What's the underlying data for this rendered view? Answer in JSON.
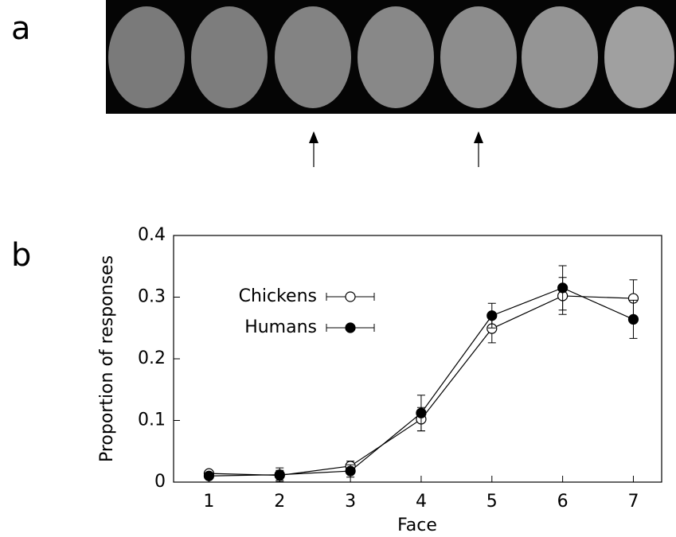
{
  "panel_labels": [
    "a",
    "b"
  ],
  "chart_data": {
    "type": "line",
    "x_label": "Face",
    "y_label": "Proportion of responses",
    "x": [
      1,
      2,
      3,
      4,
      5,
      6,
      7
    ],
    "series": [
      {
        "name": "Chickens",
        "color": "#000000",
        "marker_fill": "#ffffff",
        "values": [
          0.014,
          0.011,
          0.026,
          0.102,
          0.249,
          0.302,
          0.298
        ],
        "errors": [
          0.004,
          0.008,
          0.008,
          0.019,
          0.023,
          0.03,
          0.03
        ]
      },
      {
        "name": "Humans",
        "color": "#000000",
        "marker_fill": "#000000",
        "values": [
          0.01,
          0.012,
          0.018,
          0.112,
          0.27,
          0.315,
          0.264
        ],
        "errors": [
          0.004,
          0.011,
          0.01,
          0.029,
          0.02,
          0.036,
          0.031
        ]
      }
    ],
    "xlim": [
      0.5,
      7.4
    ],
    "xticks": [
      1,
      2,
      3,
      4,
      5,
      6,
      7
    ],
    "ylim": [
      0,
      0.4
    ],
    "yticks": [
      0,
      0.1,
      0.2,
      0.3,
      0.4
    ],
    "legend": "upper left",
    "grid": false
  }
}
